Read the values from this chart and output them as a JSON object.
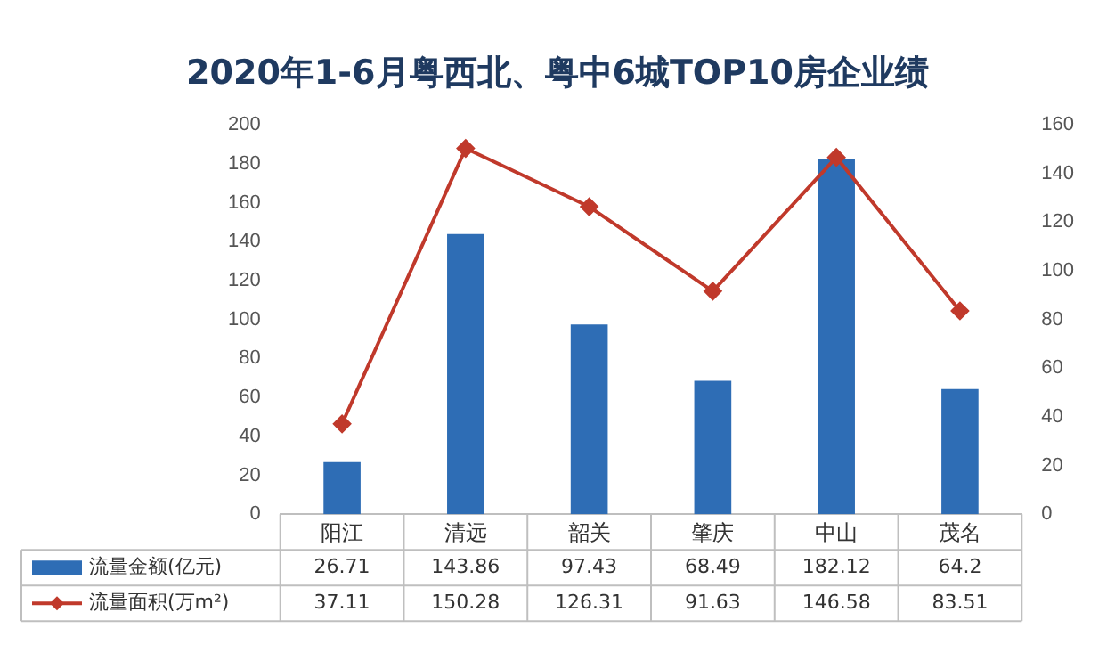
{
  "chart_data": {
    "type": "bar",
    "title": "2020年1-6月粤西北、粤中6城TOP10房企业绩",
    "categories": [
      "阳江",
      "清远",
      "韶关",
      "肇庆",
      "中山",
      "茂名"
    ],
    "series": [
      {
        "name": "流量金额(亿元)",
        "color": "#2e6db5",
        "values": [
          26.71,
          143.86,
          97.43,
          68.49,
          182.12,
          64.2
        ]
      },
      {
        "name": "流量面积(万m²)",
        "type": "line",
        "axis": "y2",
        "color": "#c0392b",
        "values": [
          37.11,
          150.28,
          126.31,
          91.63,
          146.58,
          83.51
        ]
      }
    ],
    "ylim": [
      0,
      200
    ],
    "yticks": [
      0,
      20,
      40,
      60,
      80,
      100,
      120,
      140,
      160,
      180,
      200
    ],
    "y2lim": [
      0,
      160
    ],
    "y2ticks": [
      0,
      20,
      40,
      60,
      80,
      100,
      120,
      140,
      160
    ],
    "grid": false,
    "legend": "bottom",
    "marker": "diamond",
    "line_style": "solid",
    "data_labels": true
  }
}
